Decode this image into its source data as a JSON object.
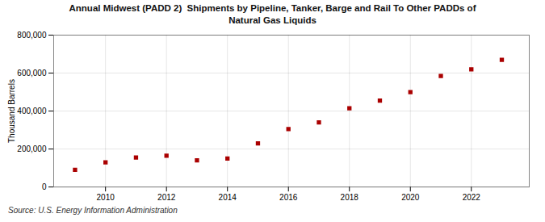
{
  "chart_data": {
    "type": "scatter",
    "title": "Annual Midwest (PADD 2)  Shipments by Pipeline, Tanker, Barge and Rail To Other PADDs of\nNatural Gas Liquids",
    "ylabel": "Thousand Barrels",
    "source": "Source: U.S. Energy Information Administration",
    "x": [
      2009,
      2010,
      2011,
      2012,
      2013,
      2014,
      2015,
      2016,
      2017,
      2018,
      2019,
      2020,
      2021,
      2022,
      2023
    ],
    "values": [
      90000,
      130000,
      155000,
      165000,
      140000,
      150000,
      230000,
      305000,
      340000,
      415000,
      455000,
      500000,
      585000,
      620000,
      670000
    ],
    "color": "#aa0000",
    "marker": "square",
    "xlim": [
      2008.3,
      2023.9
    ],
    "xticks": [
      2010,
      2012,
      2014,
      2016,
      2018,
      2020,
      2022
    ],
    "ylim": [
      0,
      800000
    ],
    "yticks": [
      0,
      {
        "value": 200000,
        "label": "200,000"
      },
      {
        "value": 400000,
        "label": "400,000"
      },
      {
        "value": 600000,
        "label": "600,000"
      },
      {
        "value": 800000,
        "label": "800,000"
      }
    ],
    "grid": true
  }
}
